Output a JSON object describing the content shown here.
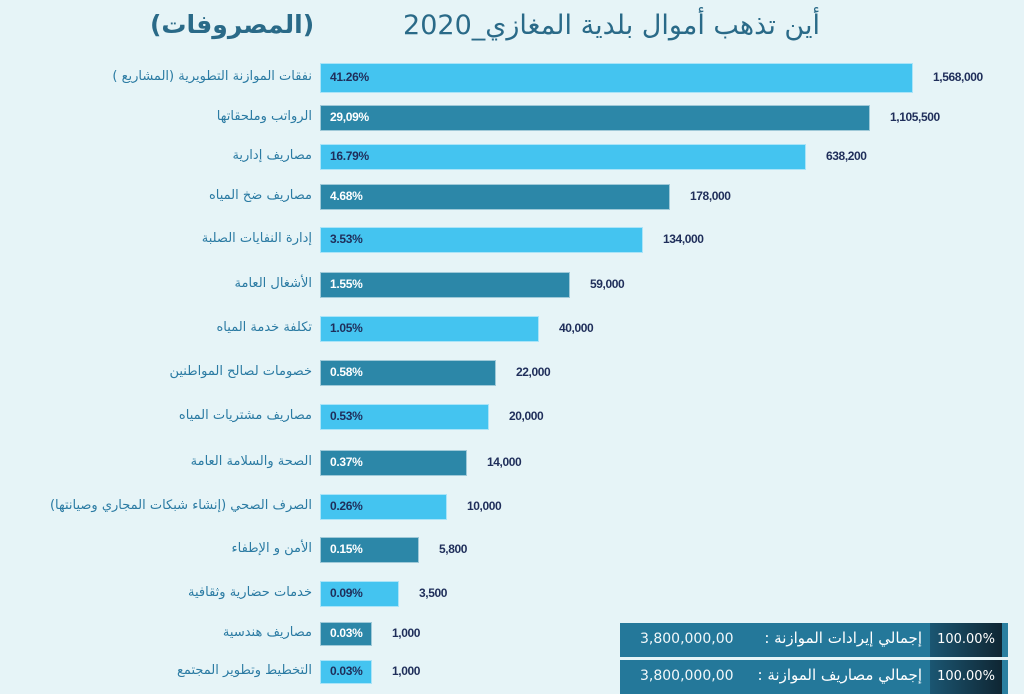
{
  "chart_data": {
    "type": "bar",
    "orientation": "horizontal",
    "title": "أين تذهب أموال بلدية المغازي_2020",
    "subtitle": "(المصروفات)",
    "xlabel": "",
    "ylabel": "",
    "grid": false,
    "colors": {
      "light": "#44C4F0",
      "dark": "#2C87A8",
      "pct_on_light": "#1F2E5A",
      "pct_on_dark": "#FFFFFF",
      "category_text": "#2B7BA3",
      "value_text": "#1F2E5A"
    },
    "categories": [
      "نفقات الموازنة التطويرية (المشاريع )",
      "الرواتب وملحقاتها",
      "مصاريف إدارية",
      "مصاريف ضخ المياه",
      "إدارة النفايات الصلبة",
      "الأشغال العامة",
      "تكلفة خدمة المياه",
      "خصومات لصالح المواطنين",
      "مصاريف مشتريات المياه",
      "الصحة والسلامة العامة",
      "الصرف الصحي  (إنشاء شبكات المجاري وصيانتها)",
      "الأمن و الإطفاء",
      "خدمات حضارية وثقافية",
      "مصاريف هندسية",
      "التخطيط وتطوير المجتمع"
    ],
    "values": [
      1568000,
      1105500,
      638200,
      178000,
      134000,
      59000,
      40000,
      22000,
      20000,
      14000,
      10000,
      5800,
      3500,
      1000,
      1000
    ],
    "value_labels": [
      "1,568,000",
      "1,105,500",
      "638,200",
      "178,000",
      "134,000",
      "59,000",
      "40,000",
      "22,000",
      "20,000",
      "14,000",
      "10,000",
      "5,800",
      "3,500",
      "1,000",
      "1,000"
    ],
    "percent_labels": [
      "41.26%",
      "29,09%",
      "16.79%",
      "4.68%",
      "3.53%",
      "1.55%",
      "1.05%",
      "0.58%",
      "0.53%",
      "0.37%",
      "0.26%",
      "0.15%",
      "0.09%",
      "0.03%",
      "0.03%"
    ]
  },
  "totals": [
    {
      "label": "إجمالي إيرادات الموازنة :",
      "amount": "3,800,000,00",
      "percent": "100.00%"
    },
    {
      "label": "إجمالي  مصاريف الموازنة :",
      "amount": "3,800,000,00",
      "percent": "100.00%"
    }
  ]
}
